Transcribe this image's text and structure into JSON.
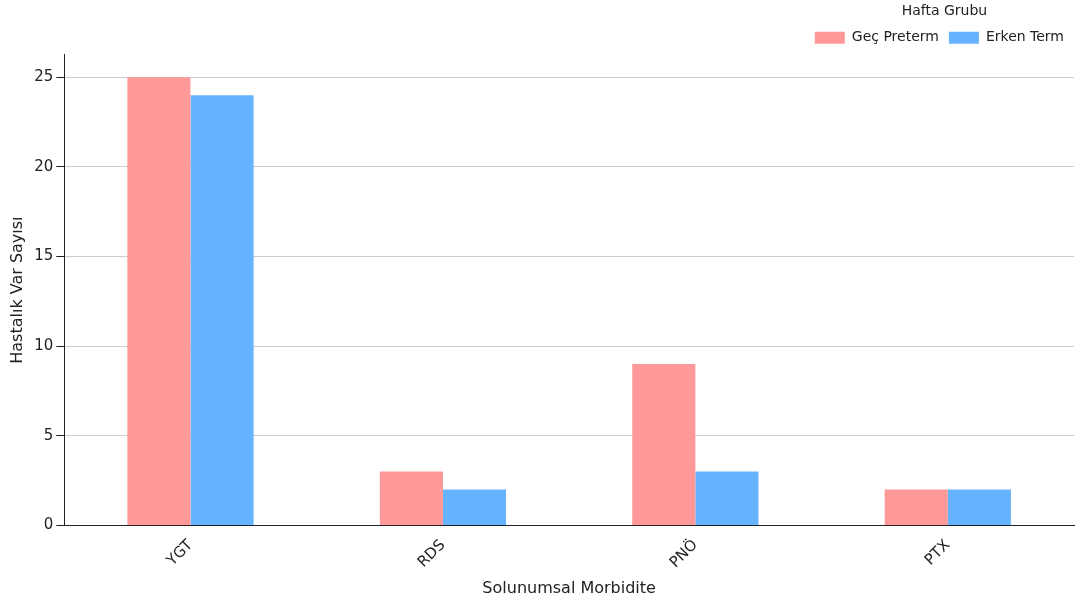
{
  "chart_data": {
    "type": "bar",
    "xlabel": "Solunumsal Morbidite",
    "ylabel": "Hastalık Var Sayısı",
    "legend_title": "Hafta Grubu",
    "categories": [
      "YGT",
      "RDS",
      "PNÖ",
      "PTX"
    ],
    "series": [
      {
        "name": "Geç Preterm",
        "color": "#ff9999",
        "values": [
          25,
          3,
          9,
          2
        ]
      },
      {
        "name": "Erken Term",
        "color": "#66b3ff",
        "values": [
          24,
          2,
          3,
          2
        ]
      }
    ],
    "ylim": [
      0,
      26.25
    ],
    "yticks": [
      0,
      5,
      10,
      15,
      20,
      25
    ],
    "grid": "y",
    "legend": "top right"
  }
}
